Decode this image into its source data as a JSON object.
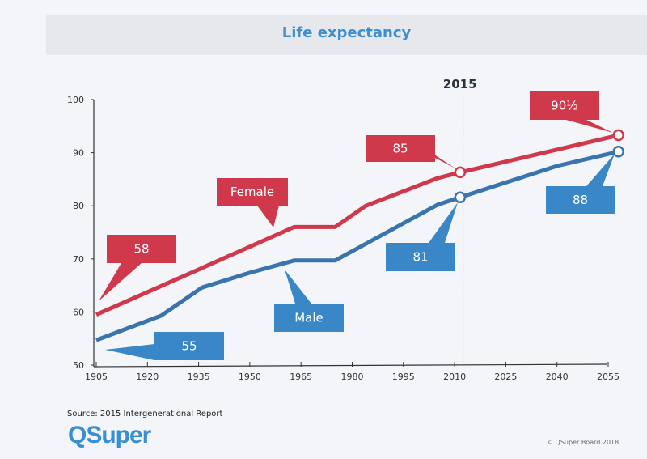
{
  "chart_data": {
    "type": "line",
    "title": "Life expectancy",
    "xlabel": "",
    "ylabel": "",
    "xlim": [
      1905,
      2058
    ],
    "ylim": [
      50,
      100
    ],
    "x_ticks": [
      "1905",
      "1920",
      "1935",
      "1950",
      "1965",
      "1980",
      "1995",
      "2010",
      "2025",
      "2040",
      "2055"
    ],
    "y_ticks": [
      "50",
      "60",
      "70",
      "80",
      "90",
      "100"
    ],
    "grid": false,
    "marker": {
      "label": "2015",
      "x": 2012.5,
      "style": "dotted vertical line"
    },
    "series": [
      {
        "name": "Female",
        "color": "#d0394b",
        "points": [
          [
            1905,
            59.5
          ],
          [
            1935,
            68
          ],
          [
            1963,
            76
          ],
          [
            1975,
            76
          ],
          [
            1984,
            80
          ],
          [
            2005,
            85.2
          ],
          [
            2011.6,
            86.3
          ],
          [
            2058,
            93.3
          ]
        ]
      },
      {
        "name": "Male",
        "color": "#3a74ad",
        "points": [
          [
            1905,
            54.7
          ],
          [
            1924,
            59.3
          ],
          [
            1936,
            64.6
          ],
          [
            1950,
            67.4
          ],
          [
            1963,
            69.7
          ],
          [
            1975,
            69.7
          ],
          [
            2005,
            80.2
          ],
          [
            2011.6,
            81.6
          ],
          [
            2040,
            87.5
          ],
          [
            2058,
            90.2
          ]
        ]
      }
    ],
    "markers": [
      {
        "series": "Female",
        "x": 2011.6,
        "y": 86.3
      },
      {
        "series": "Female",
        "x": 2058,
        "y": 93.3
      },
      {
        "series": "Male",
        "x": 2011.6,
        "y": 81.6
      },
      {
        "series": "Male",
        "x": 2058,
        "y": 90.2
      }
    ],
    "annotations": [
      {
        "text": "58",
        "series": "Female"
      },
      {
        "text": "Female",
        "series": "Female"
      },
      {
        "text": "85",
        "series": "Female"
      },
      {
        "text": "90½",
        "series": "Female"
      },
      {
        "text": "55",
        "series": "Male"
      },
      {
        "text": "Male",
        "series": "Male"
      },
      {
        "text": "81",
        "series": "Male"
      },
      {
        "text": "88",
        "series": "Male"
      }
    ]
  },
  "colors": {
    "female": "#d0394b",
    "male": "#3a87c8",
    "title": "#3d8fd0"
  },
  "footer": {
    "source": "Source: 2015 Intergenerational Report",
    "logo": "QSuper",
    "copyright": "© QSuper Board 2018"
  }
}
